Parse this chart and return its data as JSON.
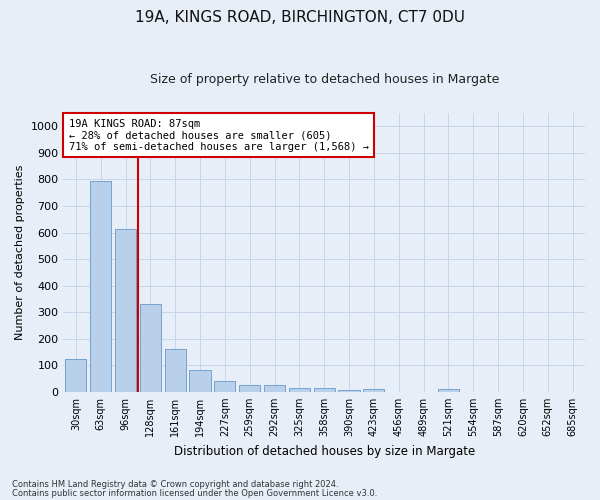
{
  "title1": "19A, KINGS ROAD, BIRCHINGTON, CT7 0DU",
  "title2": "Size of property relative to detached houses in Margate",
  "xlabel": "Distribution of detached houses by size in Margate",
  "ylabel": "Number of detached properties",
  "categories": [
    "30sqm",
    "63sqm",
    "96sqm",
    "128sqm",
    "161sqm",
    "194sqm",
    "227sqm",
    "259sqm",
    "292sqm",
    "325sqm",
    "358sqm",
    "390sqm",
    "423sqm",
    "456sqm",
    "489sqm",
    "521sqm",
    "554sqm",
    "587sqm",
    "620sqm",
    "652sqm",
    "685sqm"
  ],
  "values": [
    125,
    795,
    615,
    330,
    162,
    82,
    40,
    27,
    24,
    16,
    15,
    8,
    10,
    0,
    0,
    10,
    0,
    0,
    0,
    0,
    0
  ],
  "bar_color": "#b8d0ea",
  "bar_edge_color": "#6699cc",
  "grid_color": "#c8d4e8",
  "vline_x": 2.5,
  "vline_color": "#cc0000",
  "annotation_text": "19A KINGS ROAD: 87sqm\n← 28% of detached houses are smaller (605)\n71% of semi-detached houses are larger (1,568) →",
  "annotation_box_color": "#ffffff",
  "annotation_box_edge": "#cc0000",
  "ylim": [
    0,
    1050
  ],
  "yticks": [
    0,
    100,
    200,
    300,
    400,
    500,
    600,
    700,
    800,
    900,
    1000
  ],
  "footer1": "Contains HM Land Registry data © Crown copyright and database right 2024.",
  "footer2": "Contains public sector information licensed under the Open Government Licence v3.0.",
  "bg_color": "#e8eef8",
  "plot_bg_color": "#e8eef8",
  "title1_fontsize": 11,
  "title2_fontsize": 9,
  "ylabel_fontsize": 8,
  "xlabel_fontsize": 8.5
}
